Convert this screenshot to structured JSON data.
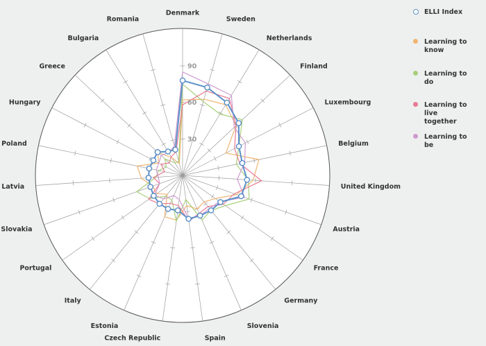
{
  "chart_data": {
    "type": "radar",
    "categories": [
      "Denmark",
      "Sweden",
      "Netherlands",
      "Finland",
      "Luxembourg",
      "Belgium",
      "United Kingdom",
      "Austria",
      "France",
      "Germany",
      "Slovenia",
      "Spain",
      "Czech Republic",
      "Estonia",
      "Italy",
      "Portugal",
      "Slovakia",
      "Latvia",
      "Poland",
      "Hungary",
      "Greece",
      "Bulgaria",
      "Romania"
    ],
    "rlim": [
      0,
      90
    ],
    "ticks": [
      30,
      60,
      90
    ],
    "grid": true,
    "legend_position": "right",
    "series": [
      {
        "name": "ELLI Index",
        "color": "#5a8fc8",
        "marker": "circle",
        "values": [
          78,
          75,
          70,
          63,
          52,
          50,
          53,
          51,
          38,
          37,
          36,
          36,
          29,
          30,
          30,
          29,
          28,
          28,
          28,
          27,
          28,
          23,
          22
        ]
      },
      {
        "name": "Learning to know",
        "color": "#f0b471",
        "marker": "none",
        "values": [
          62,
          65,
          68,
          60,
          40,
          64,
          58,
          47,
          33,
          28,
          30,
          25,
          37,
          37,
          20,
          26,
          26,
          34,
          38,
          22,
          28,
          17,
          10
        ]
      },
      {
        "name": "Learning to do",
        "color": "#a8cf7b",
        "marker": "none",
        "values": [
          75,
          63,
          59,
          67,
          52,
          45,
          54,
          58,
          43,
          37,
          40,
          20,
          38,
          22,
          22,
          33,
          40,
          22,
          20,
          15,
          20,
          12,
          12
        ]
      },
      {
        "name": "Learning to live together",
        "color": "#e87a92",
        "marker": "none",
        "values": [
          58,
          72,
          74,
          60,
          48,
          48,
          65,
          45,
          41,
          33,
          34,
          38,
          25,
          25,
          30,
          34,
          20,
          24,
          15,
          20,
          15,
          18,
          20
        ]
      },
      {
        "name": "Learning to be",
        "color": "#cf9ad0",
        "marker": "none",
        "values": [
          85,
          78,
          77,
          58,
          58,
          52,
          45,
          54,
          37,
          35,
          36,
          36,
          20,
          18,
          25,
          28,
          20,
          20,
          22,
          22,
          24,
          22,
          25
        ]
      }
    ]
  },
  "legend": [
    {
      "label": "ELLI Index",
      "color": "#5a8fc8",
      "hollow": true
    },
    {
      "label": "Learning to know",
      "color": "#f0b471",
      "hollow": false
    },
    {
      "label": "Learning to do",
      "color": "#a8cf7b",
      "hollow": false
    },
    {
      "label": "Learning to live together",
      "color": "#e87a92",
      "hollow": false
    },
    {
      "label": "Learning to be",
      "color": "#cf9ad0",
      "hollow": false
    }
  ]
}
